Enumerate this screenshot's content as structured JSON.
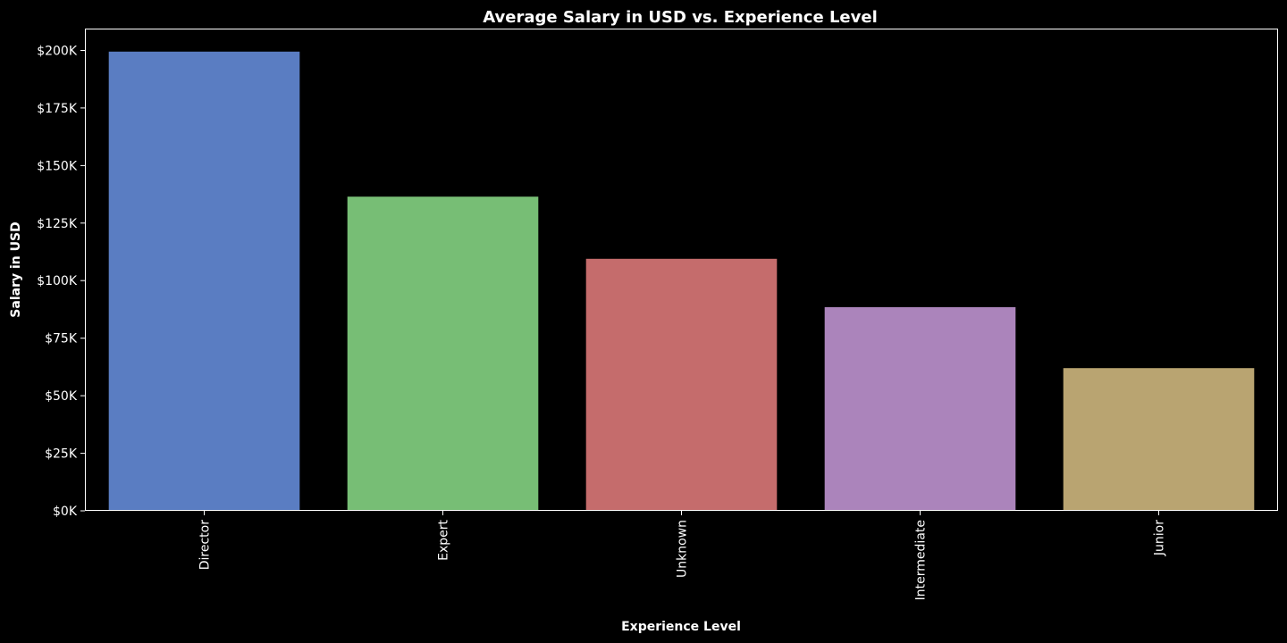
{
  "chart_data": {
    "type": "bar",
    "title": "Average Salary in USD vs. Experience Level",
    "xlabel": "Experience Level",
    "ylabel": "Salary in USD",
    "categories": [
      "Director",
      "Expert",
      "Unknown",
      "Intermediate",
      "Junior"
    ],
    "values": [
      199500,
      136500,
      109500,
      88500,
      62000
    ],
    "colors": [
      "#5a7dc2",
      "#77be75",
      "#c56c6c",
      "#ab84bb",
      "#b9a471"
    ],
    "ylim": [
      0,
      209500
    ],
    "yticks": [
      0,
      25000,
      50000,
      75000,
      100000,
      125000,
      150000,
      175000,
      200000
    ],
    "ytick_labels": [
      "$0K",
      "$25K",
      "$50K",
      "$75K",
      "$100K",
      "$125K",
      "$150K",
      "$175K",
      "$200K"
    ],
    "x_tick_rotation": "vertical",
    "grid": false,
    "legend": "none",
    "background": "#000000"
  }
}
